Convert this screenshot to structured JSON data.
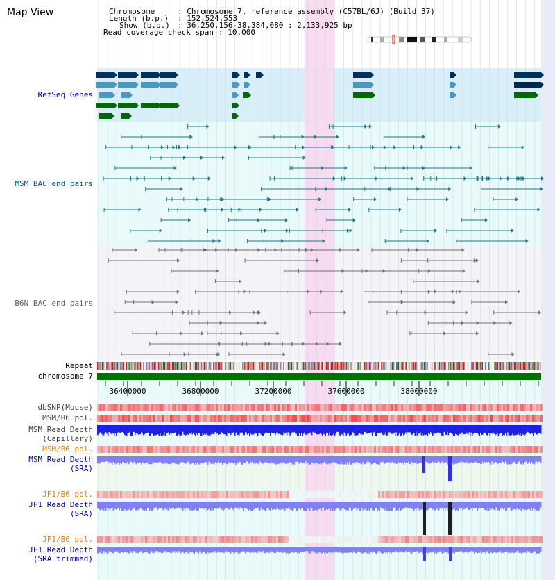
{
  "map_title": "Map View",
  "info": {
    "chromosome_key": "Chromosome",
    "chromosome_val": ": Chromosome 7, reference assembly (C57BL/6J) (Build 37)",
    "length_key": "Length (b.p.)",
    "length_val": ": 152,524,553",
    "show_key": "Show (b.p.)",
    "show_val": ": 36,250,156-38,384,080 : 2,133,925 bp",
    "coverage_key": "Read coverage check span",
    "coverage_val": ": 10,000"
  },
  "tracks": {
    "refseq": "RefSeq Genes",
    "msm_bac": "MSM BAC end pairs",
    "b6n_bac": "B6N BAC end pairs",
    "repeat": "Repeat",
    "chromosome": "chromosome 7",
    "dbsnp": "dbSNP(Mouse)",
    "msm_b6_pol": "MSM/B6 pol.",
    "msm_depth_cap_1": "MSM Read Depth",
    "msm_depth_cap_2": "(Capillary)",
    "msm_b6_pol_sra": "MSM/B6 pol.",
    "msm_depth_sra_1": "MSM Read Depth",
    "msm_depth_sra_2": "(SRA)",
    "jf1_b6_pol": "JF1/B6 pol.",
    "jf1_depth_1": "JF1 Read Depth",
    "jf1_depth_2": "(SRA)",
    "jf1_b6_pol_trim": "JF1/B6 pol.",
    "jf1_trim_1": "JF1 Read Depth",
    "jf1_trim_2": "(SRA trimmed)"
  },
  "axis": {
    "ticks": [
      {
        "label": "36400000",
        "pos": 36400000
      },
      {
        "label": "36800000",
        "pos": 36800000
      },
      {
        "label": "37200000",
        "pos": 37200000
      },
      {
        "label": "37600000",
        "pos": 37600000
      },
      {
        "label": "38000000",
        "pos": 38000000
      }
    ]
  },
  "colors": {
    "refseq_bg": "#d8eef8",
    "teal_bg": "#e8fafa",
    "b6n_bg": "#f4f4f8",
    "highlight": "#f8d8f0",
    "chromosome_bar": "#007000",
    "depth_blue": "#2020e0",
    "depth_light": "#8080f0"
  }
}
